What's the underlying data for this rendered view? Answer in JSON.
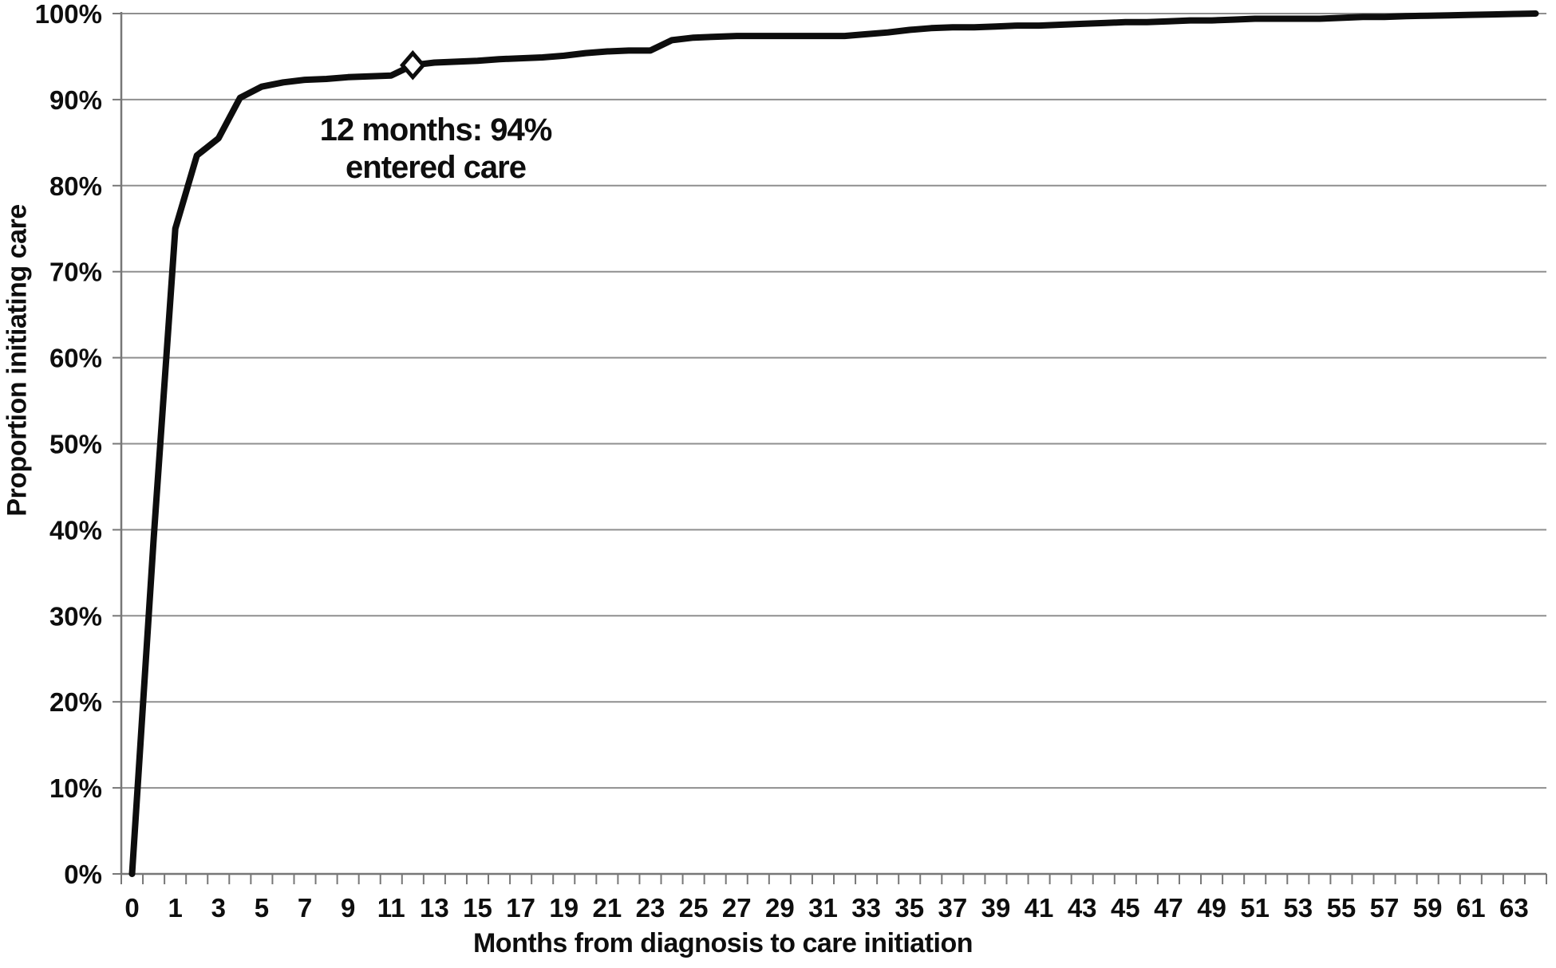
{
  "figure": {
    "background": "#ffffff",
    "text_color": "#0e0e0e",
    "grid_color": "#8f8f8f",
    "axis_color": "#777777",
    "line_color": "#0d0d0d",
    "marker_fill": "#ffffff"
  },
  "chart_data": {
    "type": "line",
    "title": "",
    "xlabel": "Months from diagnosis to care initiation",
    "ylabel": "Proportion initiating care",
    "x": [
      0,
      0.5,
      1,
      2,
      3,
      4,
      5,
      6,
      7,
      8,
      9,
      10,
      11,
      12,
      13,
      14,
      15,
      16,
      17,
      18,
      19,
      20,
      21,
      22,
      23,
      24,
      25,
      26,
      27,
      28,
      29,
      30,
      31,
      32,
      33,
      34,
      35,
      36,
      37,
      38,
      39,
      40,
      41,
      42,
      43,
      44,
      45,
      46,
      47,
      48,
      49,
      50,
      51,
      52,
      53,
      54,
      55,
      56,
      57,
      58,
      59,
      60,
      61,
      62,
      63,
      64
    ],
    "y": [
      0,
      39,
      75,
      83.5,
      85.5,
      90.2,
      91.5,
      92,
      92.3,
      92.4,
      92.6,
      92.7,
      92.8,
      94,
      94.3,
      94.4,
      94.5,
      94.7,
      94.8,
      94.9,
      95.1,
      95.4,
      95.6,
      95.7,
      95.7,
      96.9,
      97.2,
      97.3,
      97.4,
      97.4,
      97.4,
      97.4,
      97.4,
      97.4,
      97.6,
      97.8,
      98.1,
      98.3,
      98.4,
      98.4,
      98.5,
      98.6,
      98.6,
      98.7,
      98.8,
      98.9,
      99,
      99,
      99.1,
      99.2,
      99.2,
      99.3,
      99.4,
      99.4,
      99.4,
      99.4,
      99.5,
      99.6,
      99.6,
      99.7,
      99.75,
      99.8,
      99.85,
      99.9,
      99.95,
      100
    ],
    "x_tick_labels": [
      "0",
      "1",
      "3",
      "5",
      "7",
      "9",
      "11",
      "13",
      "15",
      "17",
      "19",
      "21",
      "23",
      "25",
      "27",
      "29",
      "31",
      "33",
      "35",
      "37",
      "39",
      "41",
      "43",
      "45",
      "47",
      "49",
      "51",
      "53",
      "55",
      "57",
      "59",
      "61",
      "63"
    ],
    "x_tick_label_positions": [
      0,
      2,
      4,
      6,
      8,
      10,
      12,
      14,
      16,
      18,
      20,
      22,
      24,
      26,
      28,
      30,
      32,
      34,
      36,
      38,
      40,
      42,
      44,
      46,
      48,
      50,
      52,
      54,
      56,
      58,
      60,
      62,
      64
    ],
    "y_tick_labels": [
      "0%",
      "10%",
      "20%",
      "30%",
      "40%",
      "50%",
      "60%",
      "70%",
      "80%",
      "90%",
      "100%"
    ],
    "y_tick_values": [
      0,
      10,
      20,
      30,
      40,
      50,
      60,
      70,
      80,
      90,
      100
    ],
    "ylim": [
      0,
      100
    ],
    "grid": "horizontal",
    "legend": "none",
    "marker": {
      "x": 12,
      "y": 94,
      "shape": "diamond"
    },
    "annotation": {
      "line1": "12 months: 94%",
      "line2": "entered care"
    }
  }
}
